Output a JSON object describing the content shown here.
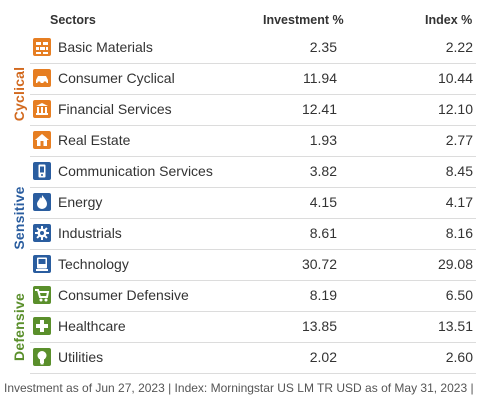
{
  "header": {
    "sectors": "Sectors",
    "investment": "Investment  %",
    "index": "Index  %"
  },
  "groups": [
    {
      "label": "Cyclical",
      "color": "#d2691e"
    },
    {
      "label": "Sensitive",
      "color": "#2a5d9f"
    },
    {
      "label": "Defensive",
      "color": "#5a8f2b"
    }
  ],
  "rows": [
    {
      "name": "Basic Materials",
      "investment": "2.35",
      "index": "2.22",
      "icon": "bricks-icon",
      "color": "#e67e22"
    },
    {
      "name": "Consumer Cyclical",
      "investment": "11.94",
      "index": "10.44",
      "icon": "car-icon",
      "color": "#e67e22"
    },
    {
      "name": "Financial Services",
      "investment": "12.41",
      "index": "12.10",
      "icon": "bank-icon",
      "color": "#e67e22"
    },
    {
      "name": "Real Estate",
      "investment": "1.93",
      "index": "2.77",
      "icon": "house-icon",
      "color": "#e67e22"
    },
    {
      "name": "Communication Services",
      "investment": "3.82",
      "index": "8.45",
      "icon": "phone-icon",
      "color": "#2a5d9f"
    },
    {
      "name": "Energy",
      "investment": "4.15",
      "index": "4.17",
      "icon": "flame-icon",
      "color": "#2a5d9f"
    },
    {
      "name": "Industrials",
      "investment": "8.61",
      "index": "8.16",
      "icon": "gear-icon",
      "color": "#2a5d9f"
    },
    {
      "name": "Technology",
      "investment": "30.72",
      "index": "29.08",
      "icon": "computer-icon",
      "color": "#2a5d9f"
    },
    {
      "name": "Consumer Defensive",
      "investment": "8.19",
      "index": "6.50",
      "icon": "cart-icon",
      "color": "#5a8f2b"
    },
    {
      "name": "Healthcare",
      "investment": "13.85",
      "index": "13.51",
      "icon": "cross-icon",
      "color": "#5a8f2b"
    },
    {
      "name": "Utilities",
      "investment": "2.02",
      "index": "2.60",
      "icon": "bulb-icon",
      "color": "#5a8f2b"
    }
  ],
  "footer": "Investment as of Jun 27, 2023 | Index: Morningstar US LM TR USD as of May 31, 2023 |"
}
